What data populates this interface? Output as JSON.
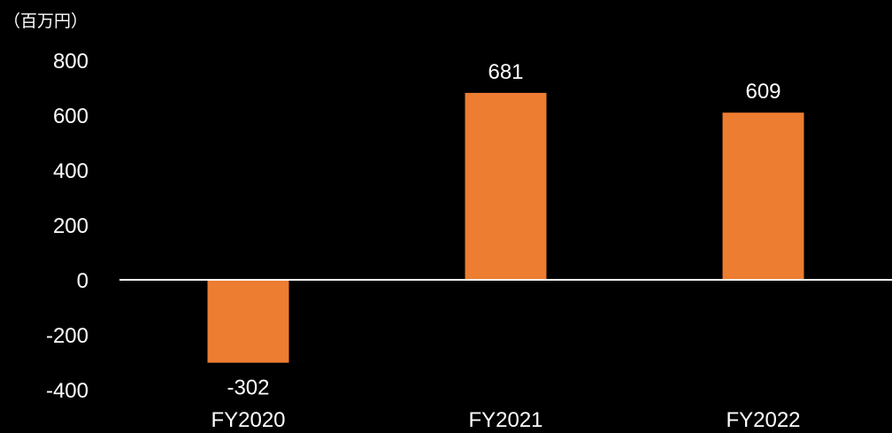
{
  "chart_data": {
    "type": "bar",
    "unit_label": "（百万円）",
    "categories": [
      "FY2020",
      "FY2021",
      "FY2022"
    ],
    "values": [
      -302,
      681,
      609
    ],
    "data_labels": [
      "-302",
      "681",
      "609"
    ],
    "yticks": [
      800,
      600,
      400,
      200,
      0,
      -200,
      -400
    ],
    "ylim": [
      -400,
      800
    ],
    "bar_color": "#ED7D31",
    "axis_color": "#FFFFFF",
    "background": "#000000",
    "grid": false,
    "legend": "none"
  }
}
